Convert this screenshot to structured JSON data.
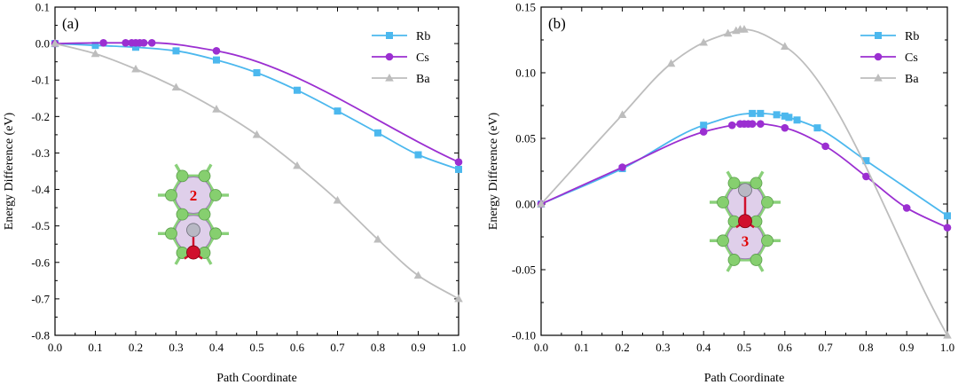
{
  "colors": {
    "Rb": "#4cb8ee",
    "Cs": "#9b2fd1",
    "Ba": "#bdbdbd",
    "graphene_bond": "#8ad07a",
    "graphene_atom": "#86cf6f",
    "site_fill": "#d9c7e6",
    "site_stroke": "#9c7bb5",
    "oxygen": "#d0102d",
    "metal": "#b8b8c4",
    "site_number": "#e00000"
  },
  "chart_data": [
    {
      "type": "line",
      "panel_label": "(a)",
      "xlabel": "Path Coordinate",
      "ylabel": "Energy Difference (eV)",
      "xlim": [
        0,
        1
      ],
      "ylim": [
        -0.8,
        0.1
      ],
      "xticks": [
        "0.0",
        "0.1",
        "0.2",
        "0.3",
        "0.4",
        "0.5",
        "0.6",
        "0.7",
        "0.8",
        "0.9",
        "1.0"
      ],
      "yticks": [
        "0.1",
        "0.0",
        "-0.1",
        "-0.2",
        "-0.3",
        "-0.4",
        "-0.5",
        "-0.6",
        "-0.7",
        "-0.8"
      ],
      "legend_position": "top-right",
      "inset_site_number": "2",
      "series": [
        {
          "name": "Rb",
          "marker": "square",
          "x": [
            0,
            0.1,
            0.2,
            0.3,
            0.4,
            0.5,
            0.6,
            0.7,
            0.8,
            0.9,
            1.0
          ],
          "y": [
            0,
            -0.005,
            -0.01,
            -0.02,
            -0.045,
            -0.08,
            -0.128,
            -0.185,
            -0.245,
            -0.305,
            -0.345
          ]
        },
        {
          "name": "Cs",
          "marker": "circle",
          "x": [
            0,
            0.12,
            0.175,
            0.19,
            0.2,
            0.21,
            0.22,
            0.24,
            0.4,
            1.0
          ],
          "y": [
            0,
            0.002,
            0.002,
            0.002,
            0.002,
            0.002,
            0.002,
            0.002,
            -0.02,
            -0.325
          ]
        },
        {
          "name": "Ba",
          "marker": "triangle",
          "x": [
            0,
            0.1,
            0.2,
            0.3,
            0.4,
            0.5,
            0.6,
            0.7,
            0.8,
            0.9,
            1.0
          ],
          "y": [
            0,
            -0.028,
            -0.07,
            -0.12,
            -0.18,
            -0.25,
            -0.335,
            -0.43,
            -0.537,
            -0.636,
            -0.7
          ]
        }
      ]
    },
    {
      "type": "line",
      "panel_label": "(b)",
      "xlabel": "Path Coordinate",
      "ylabel": "Energy Difference (eV)",
      "xlim": [
        0,
        1
      ],
      "ylim": [
        -0.1,
        0.15
      ],
      "xticks": [
        "0.0",
        "0.1",
        "0.2",
        "0.3",
        "0.4",
        "0.5",
        "0.6",
        "0.7",
        "0.8",
        "0.9",
        "1.0"
      ],
      "yticks": [
        "0.15",
        "0.10",
        "0.05",
        "0.00",
        "-0.05",
        "-0.10"
      ],
      "legend_position": "top-right",
      "inset_site_number": "3",
      "series": [
        {
          "name": "Rb",
          "marker": "square",
          "x": [
            0,
            0.2,
            0.4,
            0.52,
            0.54,
            0.58,
            0.6,
            0.61,
            0.63,
            0.68,
            0.8,
            1.0
          ],
          "y": [
            0,
            0.027,
            0.06,
            0.069,
            0.069,
            0.068,
            0.067,
            0.066,
            0.064,
            0.058,
            0.033,
            -0.009
          ]
        },
        {
          "name": "Cs",
          "marker": "circle",
          "x": [
            0,
            0.2,
            0.4,
            0.47,
            0.49,
            0.5,
            0.51,
            0.52,
            0.54,
            0.6,
            0.7,
            0.8,
            0.9,
            1.0
          ],
          "y": [
            0,
            0.028,
            0.055,
            0.06,
            0.061,
            0.061,
            0.061,
            0.061,
            0.061,
            0.058,
            0.044,
            0.021,
            -0.003,
            -0.018
          ]
        },
        {
          "name": "Ba",
          "marker": "triangle",
          "x": [
            0,
            0.2,
            0.32,
            0.4,
            0.46,
            0.48,
            0.49,
            0.5,
            0.6,
            1.0
          ],
          "y": [
            0,
            0.068,
            0.107,
            0.123,
            0.13,
            0.132,
            0.133,
            0.133,
            0.12,
            -0.1
          ]
        }
      ]
    }
  ]
}
